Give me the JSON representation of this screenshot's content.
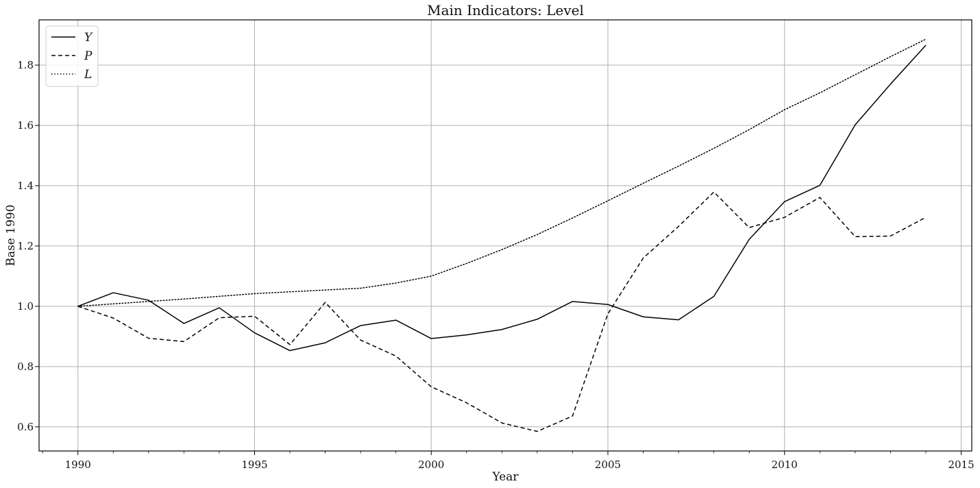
{
  "chart_data": {
    "type": "line",
    "title": "Main Indicators: Level",
    "xlabel": "Year",
    "ylabel": "Base 1990",
    "x": [
      1990,
      1991,
      1992,
      1993,
      1994,
      1995,
      1996,
      1997,
      1998,
      1999,
      2000,
      2001,
      2002,
      2003,
      2004,
      2005,
      2006,
      2007,
      2008,
      2009,
      2010,
      2011,
      2012,
      2013,
      2014
    ],
    "xlim": [
      1988.9,
      2015.3
    ],
    "ylim": [
      0.52,
      1.95
    ],
    "x_ticks": [
      1990,
      1995,
      2000,
      2005,
      2010,
      2015
    ],
    "x_tick_labels": [
      "1990",
      "1995",
      "2000",
      "2005",
      "2010",
      "2015"
    ],
    "y_ticks": [
      0.6,
      0.8,
      1.0,
      1.2,
      1.4,
      1.6,
      1.8
    ],
    "y_tick_labels": [
      "0.6",
      "0.8",
      "1.0",
      "1.2",
      "1.4",
      "1.6",
      "1.8"
    ],
    "grid": true,
    "legend_position": "top-left",
    "series": [
      {
        "name": "Y",
        "style": "solid",
        "color": "#000000",
        "values": [
          1.0,
          1.045,
          1.02,
          0.943,
          0.995,
          0.912,
          0.853,
          0.879,
          0.936,
          0.954,
          0.893,
          0.905,
          0.923,
          0.957,
          1.016,
          1.006,
          0.965,
          0.955,
          1.033,
          1.222,
          1.347,
          1.401,
          1.602,
          1.737,
          1.866
        ]
      },
      {
        "name": "P",
        "style": "dashed",
        "color": "#000000",
        "values": [
          1.0,
          0.961,
          0.894,
          0.883,
          0.962,
          0.967,
          0.873,
          1.013,
          0.888,
          0.835,
          0.733,
          0.68,
          0.613,
          0.585,
          0.636,
          0.975,
          1.16,
          1.265,
          1.379,
          1.261,
          1.295,
          1.361,
          1.231,
          1.233,
          1.295
        ]
      },
      {
        "name": "L",
        "style": "dotted",
        "color": "#000000",
        "values": [
          1.0,
          1.008,
          1.016,
          1.024,
          1.033,
          1.042,
          1.048,
          1.054,
          1.06,
          1.077,
          1.1,
          1.142,
          1.188,
          1.238,
          1.293,
          1.35,
          1.408,
          1.465,
          1.524,
          1.586,
          1.652,
          1.708,
          1.768,
          1.828,
          1.886
        ]
      }
    ]
  }
}
